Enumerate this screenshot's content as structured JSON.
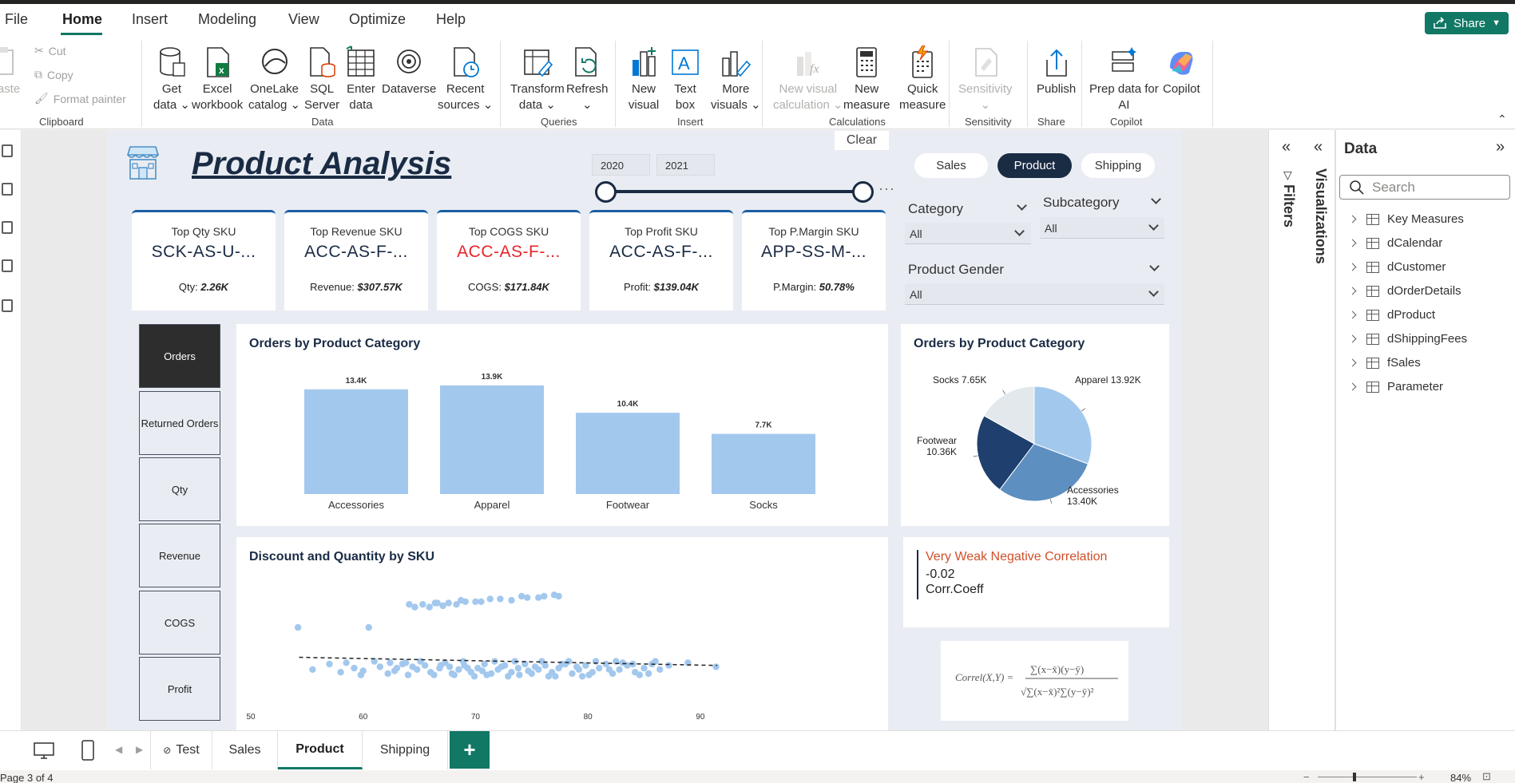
{
  "menu": {
    "items": [
      "File",
      "Home",
      "Insert",
      "Modeling",
      "View",
      "Optimize",
      "Help"
    ],
    "share_label": "Share"
  },
  "ribbon": {
    "clipboard": {
      "paste": "Paste",
      "cut": "Cut",
      "copy": "Copy",
      "format_painter": "Format painter",
      "group": "Clipboard"
    },
    "data": {
      "get_data": [
        "Get",
        "data"
      ],
      "excel": [
        "Excel",
        "workbook"
      ],
      "onelake": [
        "OneLake",
        "catalog"
      ],
      "sql": [
        "SQL",
        "Server"
      ],
      "enter": [
        "Enter",
        "data"
      ],
      "dataverse": "Dataverse",
      "recent": [
        "Recent",
        "sources"
      ],
      "group": "Data"
    },
    "queries": {
      "transform": [
        "Transform",
        "data"
      ],
      "refresh": "Refresh",
      "group": "Queries"
    },
    "insert": {
      "new_visual": [
        "New",
        "visual"
      ],
      "text_box": [
        "Text",
        "box"
      ],
      "more_visuals": [
        "More",
        "visuals"
      ],
      "group": "Insert"
    },
    "calculations": {
      "new_visual_calc": [
        "New visual",
        "calculation"
      ],
      "new_measure": [
        "New",
        "measure"
      ],
      "quick_measure": [
        "Quick",
        "measure"
      ],
      "group": "Calculations"
    },
    "sensitivity": {
      "label": "Sensitivity",
      "group": "Sensitivity"
    },
    "share": {
      "publish": "Publish",
      "group": "Share"
    },
    "copilot": {
      "prep": [
        "Prep data for",
        "AI"
      ],
      "copilot": "Copilot",
      "group": "Copilot"
    }
  },
  "report": {
    "title": "Product Analysis",
    "year_start": "2020",
    "year_end": "2021",
    "clear_label": "Clear",
    "nav": [
      "Sales",
      "Product",
      "Shipping"
    ],
    "slicers": {
      "category_label": "Category",
      "category_value": "All",
      "subcategory_label": "Subcategory",
      "subcategory_value": "All",
      "gender_label": "Product Gender",
      "gender_value": "All"
    },
    "kpis": [
      {
        "label": "Top Qty SKU",
        "value": "SCK-AS-U-...",
        "sub_label": "Qty: ",
        "sub_value": "2.26K",
        "red": false
      },
      {
        "label": "Top Revenue SKU",
        "value": "ACC-AS-F-...",
        "sub_label": "Revenue: ",
        "sub_value": "$307.57K",
        "red": false
      },
      {
        "label": "Top COGS SKU",
        "value": "ACC-AS-F-...",
        "sub_label": "COGS: ",
        "sub_value": "$171.84K",
        "red": true
      },
      {
        "label": "Top Profit SKU",
        "value": "ACC-AS-F-...",
        "sub_label": "Profit: ",
        "sub_value": "$139.04K",
        "red": false
      },
      {
        "label": "Top P.Margin SKU",
        "value": "APP-SS-M-...",
        "sub_label": "P.Margin: ",
        "sub_value": "50.78%",
        "red": false
      }
    ],
    "measures": [
      "Orders",
      "Returned Orders",
      "Qty",
      "Revenue",
      "COGS",
      "Profit"
    ],
    "correlation": {
      "heading": "Very Weak Negative Correlation",
      "value": "-0.02",
      "label": "Corr.Coeff"
    },
    "formula": "Correl(X,Y) = Σ(x−x̄)(y−ȳ) / √(Σ(x−x̄)² Σ(y−ȳ)²)"
  },
  "chart_data": [
    {
      "type": "bar",
      "title": "Orders by Product Category",
      "categories": [
        "Accessories",
        "Apparel",
        "Footwear",
        "Socks"
      ],
      "values": [
        13400,
        13900,
        10400,
        7700
      ],
      "data_labels": [
        "13.4K",
        "13.9K",
        "10.4K",
        "7.7K"
      ],
      "color": "#a3c8ee",
      "ylim": [
        0,
        14500
      ],
      "grid": false
    },
    {
      "type": "pie",
      "title": "Orders by Product Category",
      "series": [
        {
          "name": "Apparel",
          "value": 13920,
          "label": "13.92K",
          "color": "#a3c8ee"
        },
        {
          "name": "Accessories",
          "value": 13400,
          "label": "13.40K",
          "color": "#5d8fc0"
        },
        {
          "name": "Footwear",
          "value": 10360,
          "label": "10.36K",
          "color": "#1f3f6e"
        },
        {
          "name": "Socks",
          "value": 7650,
          "label": "7.65K",
          "color": "#e3e8ec"
        }
      ]
    },
    {
      "type": "scatter",
      "title": "Discount and Quantity by SKU",
      "xlim": [
        50,
        92
      ],
      "x_ticks": [
        50,
        60,
        70,
        80,
        90
      ],
      "ylim": [
        0,
        1
      ],
      "color": "#a3c8ee",
      "trendline": {
        "from": [
          54.3,
          0.35
        ],
        "to": [
          91.5,
          0.29
        ]
      },
      "points": [
        [
          54.2,
          0.57
        ],
        [
          60.5,
          0.57
        ],
        [
          64.6,
          0.72
        ],
        [
          65.3,
          0.74
        ],
        [
          65.9,
          0.72
        ],
        [
          66.4,
          0.75
        ],
        [
          67.1,
          0.73
        ],
        [
          67.6,
          0.75
        ],
        [
          68.3,
          0.74
        ],
        [
          69.1,
          0.76
        ],
        [
          70.0,
          0.76
        ],
        [
          71.3,
          0.78
        ],
        [
          72.2,
          0.78
        ],
        [
          73.2,
          0.77
        ],
        [
          74.1,
          0.8
        ],
        [
          74.6,
          0.79
        ],
        [
          75.6,
          0.79
        ],
        [
          76.1,
          0.8
        ],
        [
          77.0,
          0.81
        ],
        [
          77.4,
          0.8
        ],
        [
          64.1,
          0.74
        ],
        [
          66.6,
          0.75
        ],
        [
          68.7,
          0.77
        ],
        [
          70.5,
          0.76
        ],
        [
          55.5,
          0.26
        ],
        [
          57.0,
          0.3
        ],
        [
          58.0,
          0.24
        ],
        [
          59.2,
          0.27
        ],
        [
          60.0,
          0.25
        ],
        [
          61.5,
          0.28
        ],
        [
          62.2,
          0.23
        ],
        [
          63.0,
          0.27
        ],
        [
          63.5,
          0.3
        ],
        [
          64.0,
          0.22
        ],
        [
          64.8,
          0.26
        ],
        [
          65.5,
          0.29
        ],
        [
          66.0,
          0.24
        ],
        [
          66.8,
          0.27
        ],
        [
          67.3,
          0.31
        ],
        [
          67.9,
          0.23
        ],
        [
          68.5,
          0.26
        ],
        [
          69.0,
          0.29
        ],
        [
          69.6,
          0.24
        ],
        [
          70.2,
          0.27
        ],
        [
          70.8,
          0.3
        ],
        [
          71.4,
          0.23
        ],
        [
          72.0,
          0.26
        ],
        [
          72.6,
          0.29
        ],
        [
          73.2,
          0.24
        ],
        [
          73.8,
          0.27
        ],
        [
          74.4,
          0.3
        ],
        [
          75.0,
          0.23
        ],
        [
          75.6,
          0.26
        ],
        [
          76.2,
          0.29
        ],
        [
          76.8,
          0.24
        ],
        [
          77.4,
          0.27
        ],
        [
          78.0,
          0.3
        ],
        [
          78.6,
          0.23
        ],
        [
          79.2,
          0.26
        ],
        [
          79.8,
          0.29
        ],
        [
          80.4,
          0.24
        ],
        [
          81.0,
          0.27
        ],
        [
          81.6,
          0.3
        ],
        [
          82.2,
          0.23
        ],
        [
          82.8,
          0.26
        ],
        [
          83.5,
          0.29
        ],
        [
          84.2,
          0.24
        ],
        [
          85.0,
          0.27
        ],
        [
          85.7,
          0.3
        ],
        [
          86.4,
          0.26
        ],
        [
          87.2,
          0.29
        ],
        [
          91.4,
          0.28
        ],
        [
          58.5,
          0.31
        ],
        [
          61.0,
          0.32
        ],
        [
          62.8,
          0.25
        ],
        [
          63.8,
          0.31
        ],
        [
          65.1,
          0.32
        ],
        [
          66.3,
          0.22
        ],
        [
          67.7,
          0.28
        ],
        [
          68.9,
          0.32
        ],
        [
          69.9,
          0.21
        ],
        [
          70.6,
          0.25
        ],
        [
          71.7,
          0.32
        ],
        [
          72.9,
          0.21
        ],
        [
          73.5,
          0.32
        ],
        [
          74.7,
          0.25
        ],
        [
          75.9,
          0.32
        ],
        [
          77.1,
          0.21
        ],
        [
          78.3,
          0.32
        ],
        [
          79.5,
          0.21
        ],
        [
          80.7,
          0.32
        ],
        [
          81.9,
          0.26
        ],
        [
          83.1,
          0.31
        ],
        [
          84.6,
          0.22
        ],
        [
          86.0,
          0.32
        ],
        [
          88.9,
          0.31
        ],
        [
          59.8,
          0.22
        ],
        [
          62.4,
          0.31
        ],
        [
          64.4,
          0.28
        ],
        [
          66.9,
          0.29
        ],
        [
          68.1,
          0.22
        ],
        [
          69.3,
          0.27
        ],
        [
          71.0,
          0.22
        ],
        [
          72.3,
          0.28
        ],
        [
          73.9,
          0.22
        ],
        [
          75.3,
          0.28
        ],
        [
          76.5,
          0.21
        ],
        [
          77.7,
          0.3
        ],
        [
          79.0,
          0.28
        ],
        [
          80.1,
          0.22
        ],
        [
          82.5,
          0.32
        ],
        [
          84.0,
          0.3
        ],
        [
          85.4,
          0.23
        ]
      ]
    }
  ],
  "filters_label": "Filters",
  "visualizations_label": "Visualizations",
  "data_pane": {
    "title": "Data",
    "search_placeholder": "Search",
    "tables": [
      "Key Measures",
      "dCalendar",
      "dCustomer",
      "dOrderDetails",
      "dProduct",
      "dShippingFees",
      "fSales",
      "Parameter"
    ]
  },
  "tabs": [
    "Test",
    "Sales",
    "Product",
    "Shipping"
  ],
  "status": {
    "page": "Page 3 of 4",
    "zoom": "84%"
  }
}
